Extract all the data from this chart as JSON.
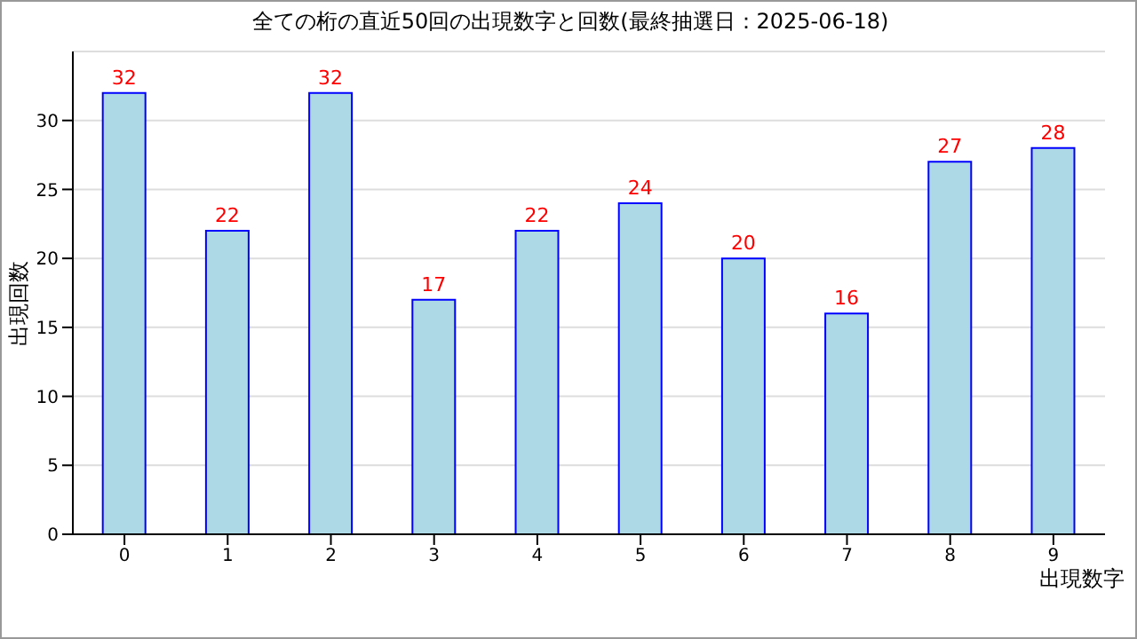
{
  "chart_data": {
    "type": "bar",
    "title": "全ての桁の直近50回の出現数字と回数(最終抽選日：2025-06-18)",
    "xlabel": "出現数字",
    "ylabel": "出現回数",
    "categories": [
      "0",
      "1",
      "2",
      "3",
      "4",
      "5",
      "6",
      "7",
      "8",
      "9"
    ],
    "values": [
      32,
      22,
      32,
      17,
      22,
      24,
      20,
      16,
      27,
      28
    ],
    "color": "#add8e6",
    "ylim": [
      0,
      35
    ],
    "yticks": [
      0,
      5,
      10,
      15,
      20,
      25,
      30
    ],
    "grid": "y",
    "data_labels": true
  }
}
